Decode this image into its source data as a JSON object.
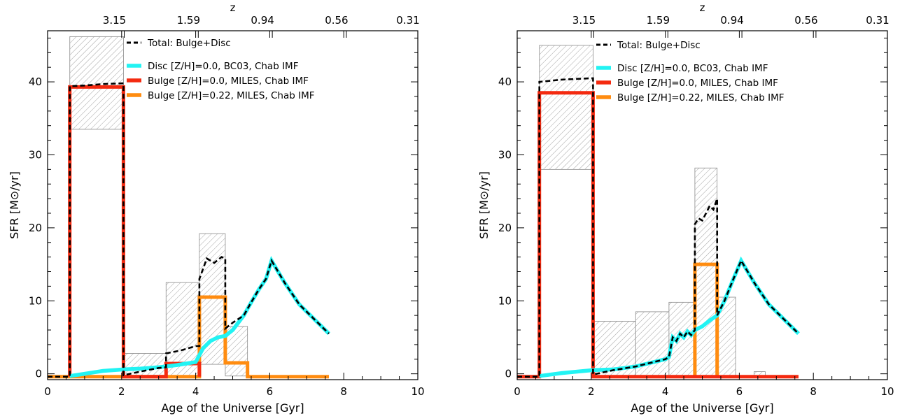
{
  "chart_data": [
    {
      "type": "line",
      "xlabel": "Age of the Universe [Gyr]",
      "ylabel": "SFR [M⊙/yr]",
      "top_axis_label": "z",
      "xlim": [
        0,
        10
      ],
      "ylim": [
        -0.8,
        47
      ],
      "x_ticks": [
        0,
        2,
        4,
        6,
        8,
        10
      ],
      "x_tick_labels": [
        "0",
        "2",
        "4",
        "6",
        "8",
        "10"
      ],
      "y_ticks": [
        0,
        10,
        20,
        30,
        40
      ],
      "y_tick_labels": [
        "0",
        "10",
        "20",
        "30",
        "40"
      ],
      "top_ticks": [
        {
          "label": "3.15",
          "x": 2.07
        },
        {
          "label": "1.59",
          "x": 4.07
        },
        {
          "label": "0.94",
          "x": 6.07
        },
        {
          "label": "0.56",
          "x": 8.07
        },
        {
          "label": "0.31",
          "x": 10.07
        }
      ],
      "legend_position": "top-center",
      "legend": [
        {
          "label": "Total: Bulge+Disc",
          "color": "#000000",
          "style": "dashed"
        },
        {
          "label": "Disc [Z/H]=0.0, BC03, Chab IMF",
          "color": "#22f3f3",
          "style": "solid"
        },
        {
          "label": "Bulge [Z/H]=0.0, MILES, Chab IMF",
          "color": "#f42a10",
          "style": "solid"
        },
        {
          "label": "Bulge [Z/H]=0.22, MILES, Chab IMF",
          "color": "#ff8c10",
          "style": "solid"
        }
      ],
      "uncertainty_boxes": [
        {
          "x": [
            0.6,
            2.05
          ],
          "y": [
            33.5,
            46.2
          ]
        },
        {
          "x": [
            2.05,
            3.2
          ],
          "y": [
            -0.3,
            2.8
          ]
        },
        {
          "x": [
            3.2,
            4.1
          ],
          "y": [
            -0.3,
            12.5
          ]
        },
        {
          "x": [
            4.1,
            4.8
          ],
          "y": [
            1.3,
            19.2
          ]
        },
        {
          "x": [
            4.8,
            5.4
          ],
          "y": [
            -0.3,
            6.5
          ]
        }
      ],
      "series": [
        {
          "name": "Total: Bulge+Disc",
          "color": "#000000",
          "style": "dashed",
          "x": [
            -0.1,
            0.6,
            0.6,
            1.0,
            1.5,
            2.05,
            2.05,
            2.5,
            3.0,
            3.2,
            3.2,
            3.6,
            4.0,
            4.1,
            4.1,
            4.3,
            4.5,
            4.7,
            4.8,
            4.8,
            5.0,
            5.3,
            5.5,
            5.7,
            5.9,
            6.05,
            6.4,
            6.8,
            7.2,
            7.6
          ],
          "y": [
            -0.4,
            -0.4,
            39.4,
            39.5,
            39.7,
            39.8,
            -0.2,
            0.3,
            0.8,
            0.9,
            2.8,
            3.2,
            3.8,
            3.8,
            13.0,
            15.8,
            15.2,
            16.0,
            15.8,
            6.2,
            7.0,
            8.0,
            9.8,
            11.5,
            13.0,
            15.5,
            12.5,
            9.5,
            7.5,
            5.5
          ]
        },
        {
          "name": "Disc [Z/H]=0.0, BC03, Chab IMF",
          "color": "#22f3f3",
          "style": "solid",
          "x": [
            0.6,
            1.0,
            1.5,
            2.05,
            2.5,
            3.0,
            3.5,
            4.0,
            4.2,
            4.4,
            4.6,
            4.8,
            5.0,
            5.3,
            5.5,
            5.7,
            5.9,
            6.05,
            6.4,
            6.8,
            7.2,
            7.6
          ],
          "y": [
            -0.3,
            0.0,
            0.4,
            0.6,
            0.7,
            0.9,
            1.2,
            1.6,
            3.5,
            4.5,
            5.0,
            5.2,
            6.0,
            8.0,
            9.8,
            11.5,
            13.0,
            15.5,
            12.5,
            9.5,
            7.5,
            5.5
          ]
        },
        {
          "name": "Bulge [Z/H]=0.0, MILES, Chab IMF",
          "color": "#f42a10",
          "style": "solid",
          "x": [
            0.6,
            0.6,
            2.05,
            2.05,
            3.2,
            3.2,
            4.1,
            4.1
          ],
          "y": [
            -0.4,
            39.3,
            39.3,
            -0.4,
            -0.4,
            1.4,
            1.4,
            -0.4
          ]
        },
        {
          "name": "Bulge [Z/H]=0.22, MILES, Chab IMF",
          "color": "#ff8c10",
          "style": "solid",
          "x": [
            -0.1,
            4.1,
            4.1,
            4.8,
            4.8,
            5.4,
            5.4,
            7.6
          ],
          "y": [
            -0.4,
            -0.4,
            10.5,
            10.5,
            1.5,
            1.5,
            -0.4,
            -0.4
          ]
        }
      ]
    },
    {
      "type": "line",
      "xlabel": "Age of the Universe [Gyr]",
      "ylabel": "SFR [M⊙/yr]",
      "top_axis_label": "z",
      "xlim": [
        0,
        10
      ],
      "ylim": [
        -0.8,
        47
      ],
      "x_ticks": [
        0,
        2,
        4,
        6,
        8,
        10
      ],
      "x_tick_labels": [
        "0",
        "2",
        "4",
        "6",
        "8",
        "10"
      ],
      "y_ticks": [
        0,
        10,
        20,
        30,
        40
      ],
      "y_tick_labels": [
        "0",
        "10",
        "20",
        "30",
        "40"
      ],
      "top_ticks": [
        {
          "label": "3.15",
          "x": 2.07
        },
        {
          "label": "1.59",
          "x": 4.07
        },
        {
          "label": "0.94",
          "x": 6.07
        },
        {
          "label": "0.56",
          "x": 8.07
        },
        {
          "label": "0.31",
          "x": 10.07
        }
      ],
      "legend_position": "top-center",
      "legend": [
        {
          "label": "Total: Bulge+Disc",
          "color": "#000000",
          "style": "dashed"
        },
        {
          "label": "Disc [Z/H]=0.0, BC03, Chab IMF",
          "color": "#22f3f3",
          "style": "solid"
        },
        {
          "label": "Bulge [Z/H]=0.0, MILES, Chab IMF",
          "color": "#f42a10",
          "style": "solid"
        },
        {
          "label": "Bulge [Z/H]=0.22, MILES, Chab IMF",
          "color": "#ff8c10",
          "style": "solid"
        }
      ],
      "uncertainty_boxes": [
        {
          "x": [
            0.6,
            2.05
          ],
          "y": [
            28.0,
            45.0
          ]
        },
        {
          "x": [
            2.05,
            3.2
          ],
          "y": [
            -0.3,
            7.2
          ]
        },
        {
          "x": [
            3.2,
            4.1
          ],
          "y": [
            -0.3,
            8.5
          ]
        },
        {
          "x": [
            4.1,
            4.8
          ],
          "y": [
            -0.3,
            9.8
          ]
        },
        {
          "x": [
            4.8,
            5.4
          ],
          "y": [
            -0.3,
            28.2
          ]
        },
        {
          "x": [
            5.4,
            5.9
          ],
          "y": [
            -0.3,
            10.5
          ]
        },
        {
          "x": [
            6.4,
            6.7
          ],
          "y": [
            -0.3,
            0.3
          ]
        }
      ],
      "series": [
        {
          "name": "Total: Bulge+Disc",
          "color": "#000000",
          "style": "dashed",
          "x": [
            -0.1,
            0.6,
            0.6,
            1.2,
            2.0,
            2.05,
            2.05,
            2.6,
            3.2,
            3.6,
            4.0,
            4.1,
            4.2,
            4.3,
            4.4,
            4.5,
            4.6,
            4.7,
            4.8,
            4.8,
            4.9,
            5.0,
            5.1,
            5.2,
            5.3,
            5.4,
            5.4,
            5.6,
            5.8,
            6.05,
            6.4,
            6.8,
            7.2,
            7.6
          ],
          "y": [
            -0.4,
            -0.4,
            40.0,
            40.3,
            40.5,
            40.5,
            -0.1,
            0.5,
            1.0,
            1.5,
            2.0,
            2.3,
            5.0,
            4.5,
            5.5,
            5.0,
            5.8,
            5.3,
            6.0,
            20.5,
            21.3,
            21.0,
            22.0,
            23.0,
            22.5,
            24.0,
            8.0,
            10.0,
            12.5,
            15.5,
            12.5,
            9.5,
            7.5,
            5.5
          ]
        },
        {
          "name": "Disc [Z/H]=0.0, BC03, Chab IMF",
          "color": "#22f3f3",
          "style": "solid",
          "x": [
            0.6,
            1.2,
            2.05,
            2.6,
            3.2,
            3.6,
            4.0,
            4.1,
            4.2,
            4.3,
            4.4,
            4.5,
            4.6,
            4.7,
            4.8,
            5.0,
            5.2,
            5.4,
            5.6,
            5.8,
            6.05,
            6.4,
            6.8,
            7.2,
            7.6
          ],
          "y": [
            -0.3,
            0.1,
            0.5,
            0.6,
            1.0,
            1.5,
            2.0,
            2.3,
            5.0,
            4.5,
            5.5,
            5.0,
            5.8,
            5.3,
            6.0,
            6.5,
            7.3,
            8.0,
            10.0,
            12.5,
            15.5,
            12.5,
            9.5,
            7.5,
            5.5
          ]
        },
        {
          "name": "Bulge [Z/H]=0.0, MILES, Chab IMF",
          "color": "#f42a10",
          "style": "solid",
          "x": [
            -0.1,
            0.6,
            0.6,
            2.05,
            2.05,
            7.6
          ],
          "y": [
            -0.4,
            -0.4,
            38.5,
            38.5,
            -0.4,
            -0.4
          ]
        },
        {
          "name": "Bulge [Z/H]=0.22, MILES, Chab IMF",
          "color": "#ff8c10",
          "style": "solid",
          "x": [
            4.8,
            4.8,
            5.4,
            5.4
          ],
          "y": [
            -0.4,
            15.0,
            15.0,
            -0.4
          ]
        }
      ]
    }
  ]
}
